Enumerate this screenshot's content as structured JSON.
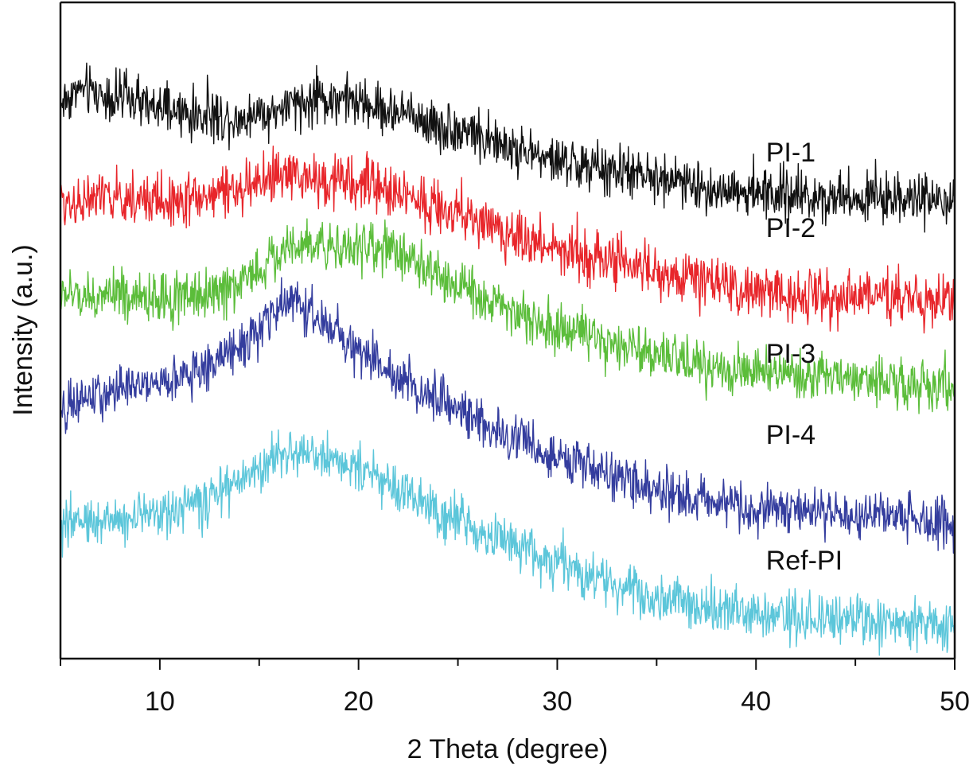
{
  "chart_data": {
    "type": "line",
    "title": "",
    "xlabel": "2 Theta (degree)",
    "ylabel": "Intensity (a.u.)",
    "xlim": [
      5,
      50
    ],
    "ylim": [
      0,
      825
    ],
    "x_major_ticks": [
      10,
      20,
      30,
      40,
      50
    ],
    "x_minor_ticks": [
      5,
      15,
      25,
      35,
      45
    ],
    "y_ticks": [],
    "grid": false,
    "legend": "inline labels at right of each curve",
    "note": "Intensity is arbitrary units; curves vertically offset (stacked). Noisy XRD patterns with broad amorphous halos.",
    "series": [
      {
        "name": "PI-1",
        "color": "#111111",
        "label_at": [
          40.5,
          625
        ],
        "noise": 34,
        "baseline": {
          "x": [
            5,
            6,
            8,
            10,
            12,
            14,
            15,
            17,
            18,
            19,
            20,
            22,
            25,
            28,
            30,
            33,
            35,
            38,
            40,
            42,
            45,
            48,
            50
          ],
          "y": [
            700,
            715,
            705,
            690,
            682,
            680,
            685,
            695,
            702,
            705,
            698,
            685,
            665,
            640,
            625,
            612,
            603,
            590,
            585,
            583,
            580,
            578,
            572
          ]
        }
      },
      {
        "name": "PI-2",
        "color": "#e8262b",
        "label_at": [
          40.5,
          530
        ],
        "noise": 36,
        "baseline": {
          "x": [
            5,
            8,
            10,
            12,
            14,
            15,
            16,
            17,
            18,
            20,
            22,
            25,
            28,
            30,
            33,
            35,
            38,
            40,
            42,
            45,
            48,
            50
          ],
          "y": [
            575,
            578,
            576,
            580,
            590,
            598,
            605,
            606,
            602,
            598,
            585,
            560,
            530,
            515,
            498,
            485,
            470,
            462,
            458,
            455,
            452,
            448
          ]
        }
      },
      {
        "name": "PI-3",
        "color": "#5bbd3a",
        "label_at": [
          40.5,
          372
        ],
        "noise": 34,
        "baseline": {
          "x": [
            5,
            8,
            10,
            12,
            13,
            15,
            16,
            17,
            18,
            20,
            22,
            23,
            25,
            27,
            30,
            33,
            35,
            38,
            40,
            42,
            45,
            48,
            50
          ],
          "y": [
            458,
            455,
            452,
            456,
            462,
            490,
            510,
            522,
            522,
            518,
            510,
            495,
            470,
            445,
            412,
            392,
            380,
            366,
            360,
            355,
            350,
            345,
            338
          ]
        }
      },
      {
        "name": "PI-4",
        "color": "#343d9e",
        "label_at": [
          40.5,
          270
        ],
        "noise": 32,
        "baseline": {
          "x": [
            5,
            6,
            8,
            10,
            12,
            14,
            15,
            16,
            16.7,
            17.5,
            18,
            20,
            22,
            25,
            28,
            30,
            33,
            35,
            38,
            40,
            42,
            45,
            48,
            50
          ],
          "y": [
            305,
            325,
            338,
            348,
            362,
            392,
            412,
            438,
            452,
            440,
            420,
            385,
            352,
            310,
            275,
            252,
            228,
            212,
            195,
            188,
            185,
            180,
            175,
            168
          ]
        }
      },
      {
        "name": "Ref-PI",
        "color": "#5cc6da",
        "label_at": [
          40.5,
          112
        ],
        "noise": 34,
        "baseline": {
          "x": [
            5,
            6,
            8,
            10,
            12,
            14,
            15,
            16,
            17,
            18,
            19,
            20,
            22,
            25,
            28,
            30,
            33,
            35,
            38,
            40,
            42,
            45,
            48,
            50
          ],
          "y": [
            162,
            172,
            178,
            184,
            196,
            222,
            238,
            252,
            258,
            256,
            248,
            238,
            212,
            175,
            140,
            118,
            92,
            78,
            62,
            55,
            52,
            48,
            44,
            40
          ]
        }
      }
    ]
  }
}
